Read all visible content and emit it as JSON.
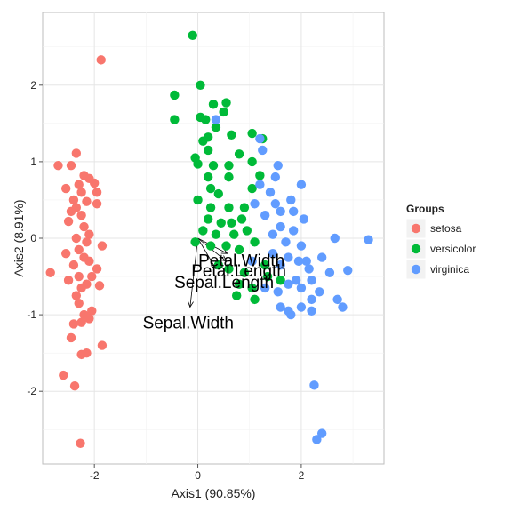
{
  "chart_data": {
    "type": "scatter",
    "title": "",
    "xlabel": "Axis1 (90.85%)",
    "ylabel": "Axis2 (8.91%)",
    "xlim": [
      -3.0,
      3.6
    ],
    "ylim": [
      -2.95,
      2.95
    ],
    "xticks": [
      -2,
      0,
      2
    ],
    "yticks": [
      -2,
      -1,
      0,
      1,
      2
    ],
    "grid": true,
    "legend": {
      "title": "Groups",
      "position": "right"
    },
    "series": [
      {
        "name": "setosa",
        "color": "#F8766D",
        "points": [
          [
            -1.87,
            2.33
          ],
          [
            -2.35,
            1.11
          ],
          [
            -2.7,
            0.95
          ],
          [
            -2.45,
            0.95
          ],
          [
            -2.2,
            0.82
          ],
          [
            -2.1,
            0.78
          ],
          [
            -2.0,
            0.72
          ],
          [
            -2.3,
            0.7
          ],
          [
            -2.55,
            0.65
          ],
          [
            -2.25,
            0.6
          ],
          [
            -2.4,
            0.5
          ],
          [
            -2.15,
            0.48
          ],
          [
            -1.95,
            0.45
          ],
          [
            -2.35,
            0.4
          ],
          [
            -2.45,
            0.35
          ],
          [
            -2.25,
            0.3
          ],
          [
            -2.2,
            0.15
          ],
          [
            -2.1,
            0.05
          ],
          [
            -2.35,
            0.0
          ],
          [
            -2.15,
            -0.05
          ],
          [
            -1.85,
            -0.1
          ],
          [
            -2.3,
            -0.15
          ],
          [
            -2.55,
            -0.2
          ],
          [
            -2.2,
            -0.25
          ],
          [
            -2.1,
            -0.3
          ],
          [
            -1.95,
            -0.4
          ],
          [
            -2.4,
            -0.35
          ],
          [
            -2.85,
            -0.45
          ],
          [
            -2.3,
            -0.5
          ],
          [
            -2.05,
            -0.5
          ],
          [
            -2.5,
            -0.55
          ],
          [
            -2.15,
            -0.6
          ],
          [
            -2.25,
            -0.65
          ],
          [
            -1.9,
            -0.62
          ],
          [
            -2.35,
            -0.75
          ],
          [
            -2.05,
            -0.95
          ],
          [
            -2.2,
            -1.0
          ],
          [
            -2.25,
            -1.1
          ],
          [
            -2.4,
            -1.12
          ],
          [
            -2.45,
            -1.3
          ],
          [
            -1.85,
            -1.4
          ],
          [
            -2.15,
            -1.5
          ],
          [
            -2.25,
            -1.52
          ],
          [
            -2.6,
            -1.79
          ],
          [
            -2.38,
            -1.93
          ],
          [
            -2.27,
            -2.68
          ],
          [
            -2.1,
            -1.05
          ],
          [
            -2.3,
            -0.85
          ],
          [
            -2.5,
            0.22
          ],
          [
            -1.95,
            0.6
          ]
        ]
      },
      {
        "name": "versicolor",
        "color": "#00BA38",
        "points": [
          [
            -0.1,
            2.65
          ],
          [
            -0.45,
            1.87
          ],
          [
            0.05,
            2.0
          ],
          [
            0.3,
            1.75
          ],
          [
            0.55,
            1.77
          ],
          [
            0.5,
            1.65
          ],
          [
            0.05,
            1.58
          ],
          [
            0.15,
            1.55
          ],
          [
            -0.45,
            1.55
          ],
          [
            0.35,
            1.45
          ],
          [
            0.2,
            1.32
          ],
          [
            0.1,
            1.27
          ],
          [
            1.05,
            1.37
          ],
          [
            0.65,
            1.35
          ],
          [
            0.2,
            1.15
          ],
          [
            0.8,
            1.1
          ],
          [
            1.05,
            1.0
          ],
          [
            1.25,
            1.3
          ],
          [
            -0.05,
            1.05
          ],
          [
            0.0,
            0.97
          ],
          [
            0.3,
            0.95
          ],
          [
            0.6,
            0.95
          ],
          [
            0.2,
            0.8
          ],
          [
            0.6,
            0.8
          ],
          [
            1.2,
            0.82
          ],
          [
            0.25,
            0.65
          ],
          [
            0.4,
            0.58
          ],
          [
            1.05,
            0.65
          ],
          [
            0.0,
            0.5
          ],
          [
            0.25,
            0.4
          ],
          [
            0.6,
            0.4
          ],
          [
            0.9,
            0.4
          ],
          [
            0.2,
            0.25
          ],
          [
            0.45,
            0.2
          ],
          [
            0.65,
            0.2
          ],
          [
            0.85,
            0.25
          ],
          [
            0.1,
            0.1
          ],
          [
            0.35,
            0.05
          ],
          [
            0.7,
            0.05
          ],
          [
            0.95,
            0.1
          ],
          [
            -0.05,
            -0.05
          ],
          [
            0.25,
            -0.1
          ],
          [
            0.55,
            -0.1
          ],
          [
            0.8,
            -0.15
          ],
          [
            1.1,
            -0.05
          ],
          [
            0.4,
            -0.35
          ],
          [
            0.6,
            -0.4
          ],
          [
            0.9,
            -0.45
          ],
          [
            1.3,
            -0.35
          ],
          [
            0.75,
            -0.75
          ],
          [
            1.05,
            -0.65
          ],
          [
            1.1,
            -0.8
          ],
          [
            1.35,
            -0.5
          ],
          [
            1.6,
            -0.55
          ],
          [
            0.8,
            -0.6
          ]
        ]
      },
      {
        "name": "virginica",
        "color": "#619CFF",
        "points": [
          [
            0.35,
            1.55
          ],
          [
            1.2,
            1.3
          ],
          [
            1.25,
            1.15
          ],
          [
            1.55,
            0.95
          ],
          [
            1.5,
            0.8
          ],
          [
            2.0,
            0.7
          ],
          [
            1.2,
            0.7
          ],
          [
            1.4,
            0.6
          ],
          [
            1.8,
            0.5
          ],
          [
            1.1,
            0.45
          ],
          [
            1.5,
            0.45
          ],
          [
            1.6,
            0.35
          ],
          [
            1.85,
            0.35
          ],
          [
            1.3,
            0.3
          ],
          [
            2.05,
            0.25
          ],
          [
            2.65,
            0.0
          ],
          [
            1.6,
            0.15
          ],
          [
            1.45,
            0.05
          ],
          [
            1.85,
            0.1
          ],
          [
            3.3,
            -0.02
          ],
          [
            1.7,
            -0.05
          ],
          [
            2.0,
            -0.1
          ],
          [
            1.45,
            -0.2
          ],
          [
            1.75,
            -0.25
          ],
          [
            1.95,
            -0.3
          ],
          [
            2.4,
            -0.25
          ],
          [
            1.6,
            -0.35
          ],
          [
            2.15,
            -0.4
          ],
          [
            2.55,
            -0.45
          ],
          [
            2.9,
            -0.42
          ],
          [
            1.9,
            -0.55
          ],
          [
            2.2,
            -0.55
          ],
          [
            1.75,
            -0.6
          ],
          [
            2.0,
            -0.65
          ],
          [
            2.35,
            -0.7
          ],
          [
            1.55,
            -0.7
          ],
          [
            2.2,
            -0.8
          ],
          [
            2.7,
            -0.8
          ],
          [
            2.8,
            -0.9
          ],
          [
            1.75,
            -0.95
          ],
          [
            2.0,
            -0.9
          ],
          [
            2.2,
            -0.95
          ],
          [
            1.6,
            -0.9
          ],
          [
            1.8,
            -1.0
          ],
          [
            2.25,
            -1.92
          ],
          [
            2.3,
            -2.63
          ],
          [
            2.4,
            -2.55
          ],
          [
            1.3,
            -0.65
          ],
          [
            2.1,
            -0.3
          ],
          [
            1.05,
            -0.3
          ]
        ]
      }
    ],
    "arrows": [
      {
        "label": "Petal.Length",
        "x": 0.55,
        "y": -0.3
      },
      {
        "label": "Petal.Width",
        "x": 0.57,
        "y": -0.2
      },
      {
        "label": "Sepal.Length",
        "x": 0.35,
        "y": -0.4
      },
      {
        "label": "Sepal.Width",
        "x": -0.15,
        "y": -0.9
      }
    ],
    "arrow_origin": [
      0,
      0
    ]
  }
}
